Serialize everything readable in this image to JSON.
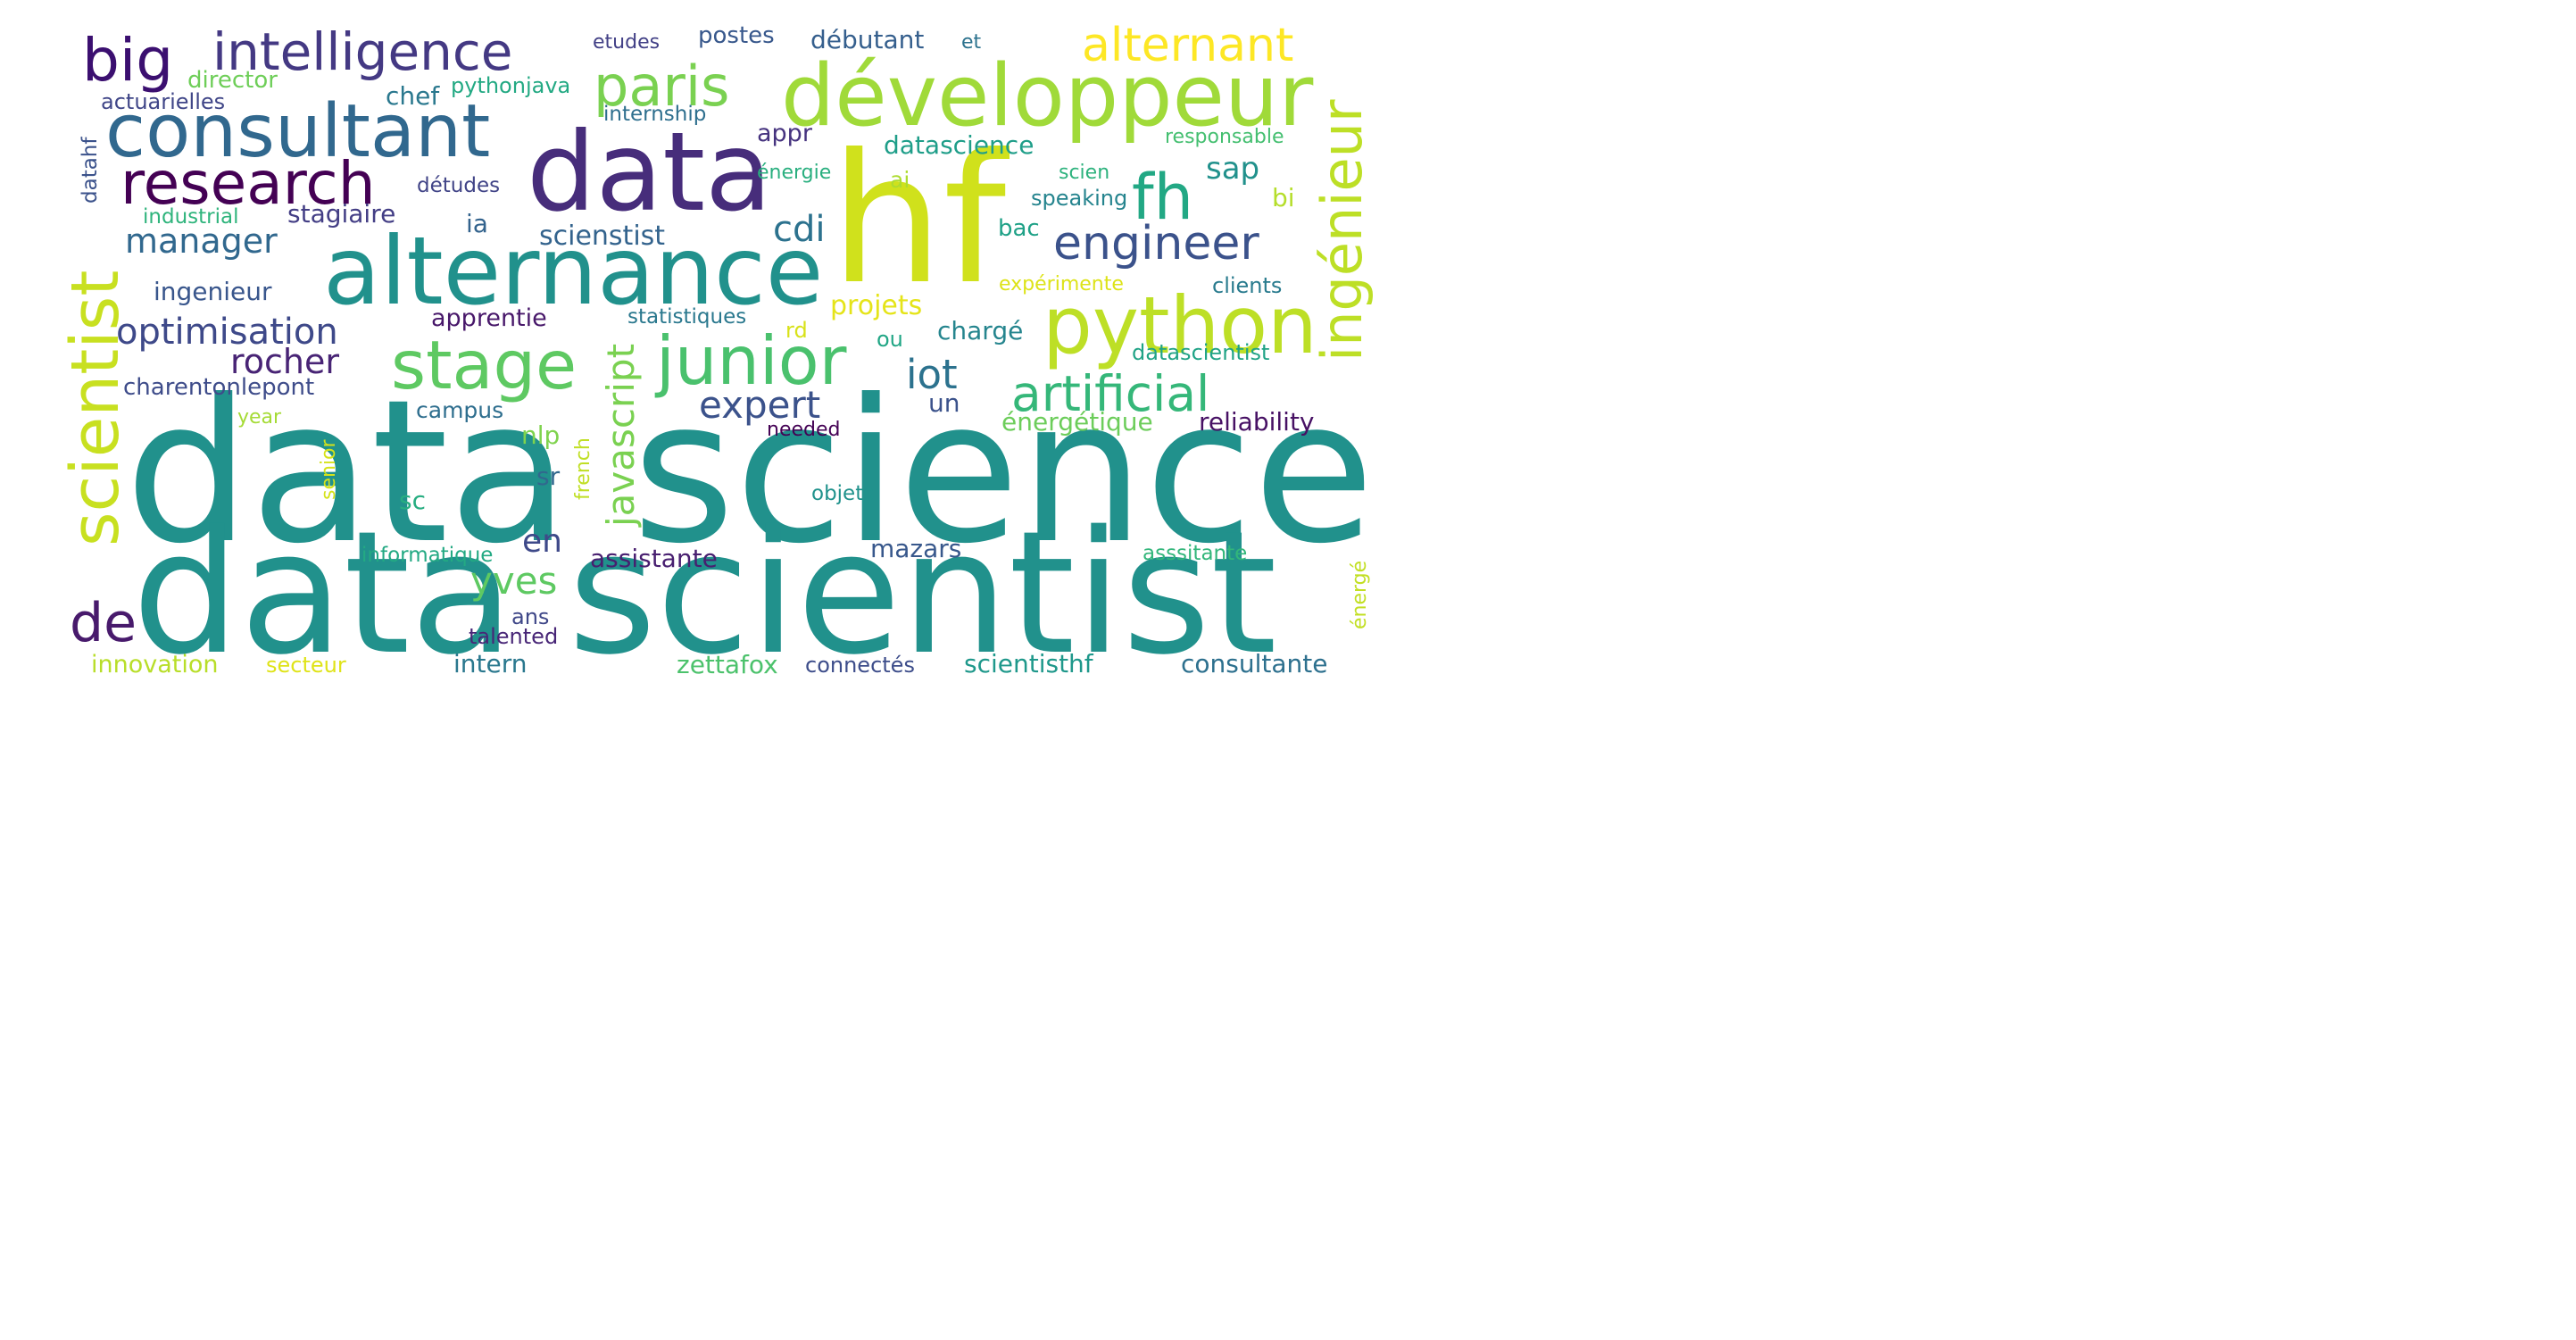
{
  "words": [
    {
      "text": "data science",
      "color": "#21918c"
    },
    {
      "text": "data scientist",
      "color": "#21918c"
    },
    {
      "text": "hf",
      "color": "#d0e11c"
    },
    {
      "text": "data",
      "color": "#472d7b"
    },
    {
      "text": "alternance",
      "color": "#21918c"
    },
    {
      "text": "développeur",
      "color": "#a0da39"
    },
    {
      "text": "python",
      "color": "#bddf26"
    },
    {
      "text": "consultant",
      "color": "#31688e"
    },
    {
      "text": "stage",
      "color": "#5ec962"
    },
    {
      "text": "junior",
      "color": "#4ac16d"
    },
    {
      "text": "research",
      "color": "#440154"
    },
    {
      "text": "big",
      "color": "#3b0f70"
    },
    {
      "text": "intelligence",
      "color": "#443983"
    },
    {
      "text": "paris",
      "color": "#7ad151"
    },
    {
      "text": "alternant",
      "color": "#fde725"
    },
    {
      "text": "fh",
      "color": "#22a884"
    },
    {
      "text": "scientist",
      "color": "#c8e020"
    },
    {
      "text": "ingénieur",
      "color": "#bddf26"
    },
    {
      "text": "artificial",
      "color": "#35b779"
    },
    {
      "text": "engineer",
      "color": "#3b528b"
    },
    {
      "text": "javascript",
      "color": "#7ad151"
    },
    {
      "text": "de",
      "color": "#481a6c"
    },
    {
      "text": "optimisation",
      "color": "#3e4989"
    },
    {
      "text": "manager",
      "color": "#31688e"
    },
    {
      "text": "rocher",
      "color": "#482475"
    },
    {
      "text": "expert",
      "color": "#3b528b"
    },
    {
      "text": "iot",
      "color": "#2c728e"
    },
    {
      "text": "cdi",
      "color": "#2c728e"
    },
    {
      "text": "sap",
      "color": "#21918c"
    },
    {
      "text": "yves",
      "color": "#5ec962"
    },
    {
      "text": "en",
      "color": "#3e4989"
    },
    {
      "text": "datascience",
      "color": "#1f9e89"
    },
    {
      "text": "débutant",
      "color": "#355f8d"
    },
    {
      "text": "postes",
      "color": "#38588c"
    },
    {
      "text": "etudes",
      "color": "#424086"
    },
    {
      "text": "et",
      "color": "#2c728e"
    },
    {
      "text": "chef",
      "color": "#2a788e"
    },
    {
      "text": "director",
      "color": "#6ece58"
    },
    {
      "text": "actuarielles",
      "color": "#404688"
    },
    {
      "text": "pythonjava",
      "color": "#23a983"
    },
    {
      "text": "internship",
      "color": "#2e6f8e"
    },
    {
      "text": "appr",
      "color": "#46337f"
    },
    {
      "text": "responsable",
      "color": "#44bf70"
    },
    {
      "text": "énergie",
      "color": "#29af7f"
    },
    {
      "text": "scien",
      "color": "#2db27d"
    },
    {
      "text": "speaking",
      "color": "#25848e"
    },
    {
      "text": "détudes",
      "color": "#414487"
    },
    {
      "text": "ai",
      "color": "#addc30"
    },
    {
      "text": "bi",
      "color": "#b5de2b"
    },
    {
      "text": "datahf",
      "color": "#3b528b"
    },
    {
      "text": "industrial",
      "color": "#2fb47c"
    },
    {
      "text": "stagiaire",
      "color": "#433e85"
    },
    {
      "text": "ia",
      "color": "#33638d"
    },
    {
      "text": "scienstist",
      "color": "#33638d"
    },
    {
      "text": "bac",
      "color": "#1fa187"
    },
    {
      "text": "ingenieur",
      "color": "#39568c"
    },
    {
      "text": "expérimente",
      "color": "#dde318"
    },
    {
      "text": "clients",
      "color": "#297b8e"
    },
    {
      "text": "projets",
      "color": "#e5e419"
    },
    {
      "text": "apprentie",
      "color": "#48186a"
    },
    {
      "text": "statistiques",
      "color": "#2a788e"
    },
    {
      "text": "chargé",
      "color": "#25858e"
    },
    {
      "text": "rd",
      "color": "#d8e219"
    },
    {
      "text": "ou",
      "color": "#21a685"
    },
    {
      "text": "datascientist",
      "color": "#20a386"
    },
    {
      "text": "charentonlepont",
      "color": "#3e4c8a"
    },
    {
      "text": "un",
      "color": "#3b528b"
    },
    {
      "text": "campus",
      "color": "#2e6e8e"
    },
    {
      "text": "énergétique",
      "color": "#6ccd5a"
    },
    {
      "text": "reliability",
      "color": "#471164"
    },
    {
      "text": "year",
      "color": "#a5db36"
    },
    {
      "text": "needed",
      "color": "#440154"
    },
    {
      "text": "nlp",
      "color": "#7fd34e"
    },
    {
      "text": "french",
      "color": "#c0df25"
    },
    {
      "text": "senior",
      "color": "#d5e21a"
    },
    {
      "text": "sr",
      "color": "#31688e"
    },
    {
      "text": "sc",
      "color": "#27ad81"
    },
    {
      "text": "objets",
      "color": "#20928c"
    },
    {
      "text": "informatique",
      "color": "#23a983"
    },
    {
      "text": "assistante",
      "color": "#481f70"
    },
    {
      "text": "mazars",
      "color": "#38588c"
    },
    {
      "text": "asssitante",
      "color": "#32b67a"
    },
    {
      "text": "énergé",
      "color": "#c2df23"
    },
    {
      "text": "ans",
      "color": "#3f4788"
    },
    {
      "text": "talented",
      "color": "#482677"
    },
    {
      "text": "innovation",
      "color": "#b8de29"
    },
    {
      "text": "secteur",
      "color": "#dfe318"
    },
    {
      "text": "intern",
      "color": "#2a788e"
    },
    {
      "text": "zettafox",
      "color": "#4cc26c"
    },
    {
      "text": "connectés",
      "color": "#3d4d8a"
    },
    {
      "text": "scientisthf",
      "color": "#1f988b"
    },
    {
      "text": "consultante",
      "color": "#2d708e"
    }
  ]
}
